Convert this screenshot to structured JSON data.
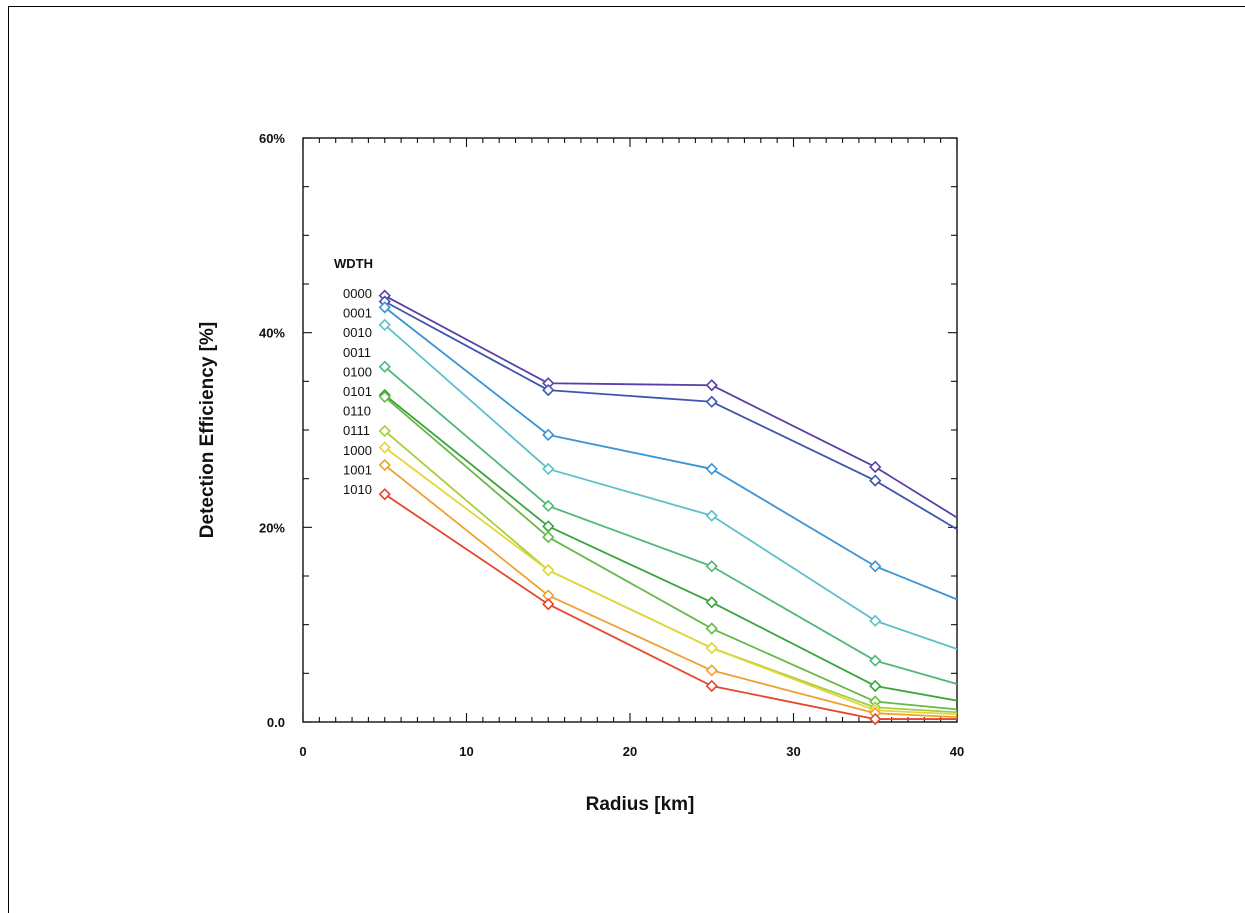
{
  "chart_data": {
    "type": "line",
    "title": "",
    "xlabel": "Radius [km]",
    "ylabel": "Detection Efficiency [%]",
    "xlim": [
      0,
      40
    ],
    "ylim": [
      0,
      60
    ],
    "x_ticks": [
      {
        "value": 0,
        "label": "0"
      },
      {
        "value": 10,
        "label": "10"
      },
      {
        "value": 20,
        "label": "20"
      },
      {
        "value": 30,
        "label": "30"
      },
      {
        "value": 40,
        "label": "40"
      }
    ],
    "y_ticks": [
      {
        "value": 0,
        "label": "0.0"
      },
      {
        "value": 20,
        "label": "20%"
      },
      {
        "value": 40,
        "label": "40%"
      },
      {
        "value": 60,
        "label": "60%"
      }
    ],
    "grid": false,
    "legend_title": "WDTH",
    "legend_placement": "left, inside plot",
    "x": [
      5,
      15,
      25,
      35,
      40
    ],
    "series": [
      {
        "name": "0000",
        "color": "#5b3fa8",
        "values": [
          43.8,
          34.8,
          34.6,
          26.2,
          21.0
        ]
      },
      {
        "name": "0001",
        "color": "#3f55b0",
        "values": [
          43.2,
          34.1,
          32.9,
          24.8,
          19.8
        ]
      },
      {
        "name": "0010",
        "color": "#3a94d6",
        "values": [
          42.6,
          29.5,
          26.0,
          16.0,
          12.6
        ]
      },
      {
        "name": "0011",
        "color": "#5cc0c9",
        "values": [
          40.8,
          26.0,
          21.2,
          10.4,
          7.5
        ]
      },
      {
        "name": "0100",
        "color": "#4fb877",
        "values": [
          36.5,
          22.2,
          16.0,
          6.3,
          3.9
        ]
      },
      {
        "name": "0101",
        "color": "#3aa43c",
        "values": [
          33.6,
          20.1,
          12.3,
          3.7,
          2.2
        ]
      },
      {
        "name": "0110",
        "color": "#68b84a",
        "values": [
          33.4,
          19.0,
          9.6,
          2.1,
          1.3
        ]
      },
      {
        "name": "0111",
        "color": "#a5cf3c",
        "values": [
          29.9,
          15.6,
          7.6,
          1.5,
          1.0
        ]
      },
      {
        "name": "1000",
        "color": "#e3d63a",
        "values": [
          28.2,
          15.6,
          7.6,
          1.2,
          0.8
        ]
      },
      {
        "name": "1001",
        "color": "#f0a030",
        "values": [
          26.4,
          13.0,
          5.3,
          0.9,
          0.5
        ]
      },
      {
        "name": "1010",
        "color": "#e5452b",
        "values": [
          23.4,
          12.1,
          3.7,
          0.3,
          0.3
        ]
      }
    ]
  }
}
